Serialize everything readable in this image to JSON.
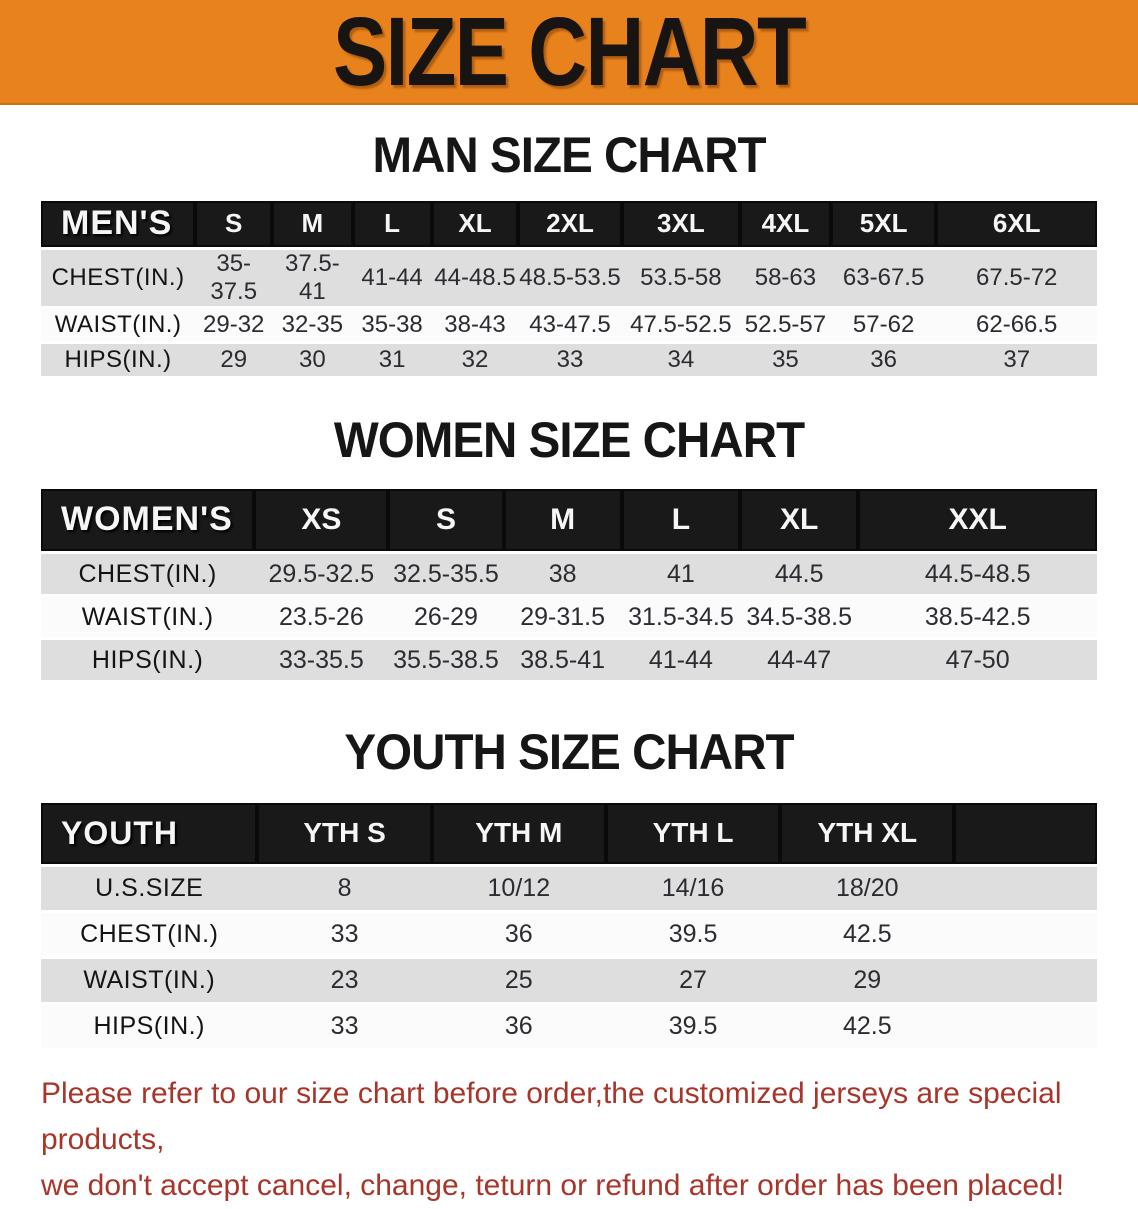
{
  "banner": {
    "title": "SIZE CHART"
  },
  "sections": [
    {
      "id": "men",
      "title": "MAN SIZE CHART",
      "header_label": "MEN'S",
      "columns": [
        "S",
        "M",
        "L",
        "XL",
        "2XL",
        "3XL",
        "4XL",
        "5XL",
        "6XL"
      ],
      "rows": [
        {
          "label": "CHEST(IN.)",
          "values": [
            "35-37.5",
            "37.5-41",
            "41-44",
            "44-48.5",
            "48.5-53.5",
            "53.5-58",
            "58-63",
            "63-67.5",
            "67.5-72"
          ]
        },
        {
          "label": "WAIST(IN.)",
          "values": [
            "29-32",
            "32-35",
            "35-38",
            "38-43",
            "43-47.5",
            "47.5-52.5",
            "52.5-57",
            "57-62",
            "62-66.5"
          ]
        },
        {
          "label": "HIPS(IN.)",
          "values": [
            "29",
            "30",
            "31",
            "32",
            "33",
            "34",
            "35",
            "36",
            "37"
          ]
        }
      ]
    },
    {
      "id": "women",
      "title": "WOMEN SIZE CHART",
      "header_label": "WOMEN'S",
      "columns": [
        "XS",
        "S",
        "M",
        "L",
        "XL",
        "XXL"
      ],
      "rows": [
        {
          "label": "CHEST(IN.)",
          "values": [
            "29.5-32.5",
            "32.5-35.5",
            "38",
            "41",
            "44.5",
            "44.5-48.5"
          ]
        },
        {
          "label": "WAIST(IN.)",
          "values": [
            "23.5-26",
            "26-29",
            "29-31.5",
            "31.5-34.5",
            "34.5-38.5",
            "38.5-42.5"
          ]
        },
        {
          "label": "HIPS(IN.)",
          "values": [
            "33-35.5",
            "35.5-38.5",
            "38.5-41",
            "41-44",
            "44-47",
            "47-50"
          ]
        }
      ]
    },
    {
      "id": "youth",
      "title": "YOUTH SIZE CHART",
      "header_label": "YOUTH",
      "columns": [
        "YTH S",
        "YTH M",
        "YTH L",
        "YTH XL"
      ],
      "rows": [
        {
          "label": "U.S.SIZE",
          "values": [
            "8",
            "10/12",
            "14/16",
            "18/20"
          ]
        },
        {
          "label": "CHEST(IN.)",
          "values": [
            "33",
            "36",
            "39.5",
            "42.5"
          ]
        },
        {
          "label": "WAIST(IN.)",
          "values": [
            "23",
            "25",
            "27",
            "29"
          ]
        },
        {
          "label": "HIPS(IN.)",
          "values": [
            "33",
            "36",
            "39.5",
            "42.5"
          ]
        }
      ]
    }
  ],
  "disclaimer": {
    "lines": [
      "Please refer to our size chart before order,the customized jerseys are special products,",
      "we don't accept cancel, change, teturn or refund after order has been placed!"
    ]
  },
  "colors": {
    "banner_bg": "#E8821C",
    "table_header_bg": "#191919",
    "row_gray": "#dedede",
    "row_white": "#fbfbfb",
    "disclaimer_red": "#A8352A"
  }
}
